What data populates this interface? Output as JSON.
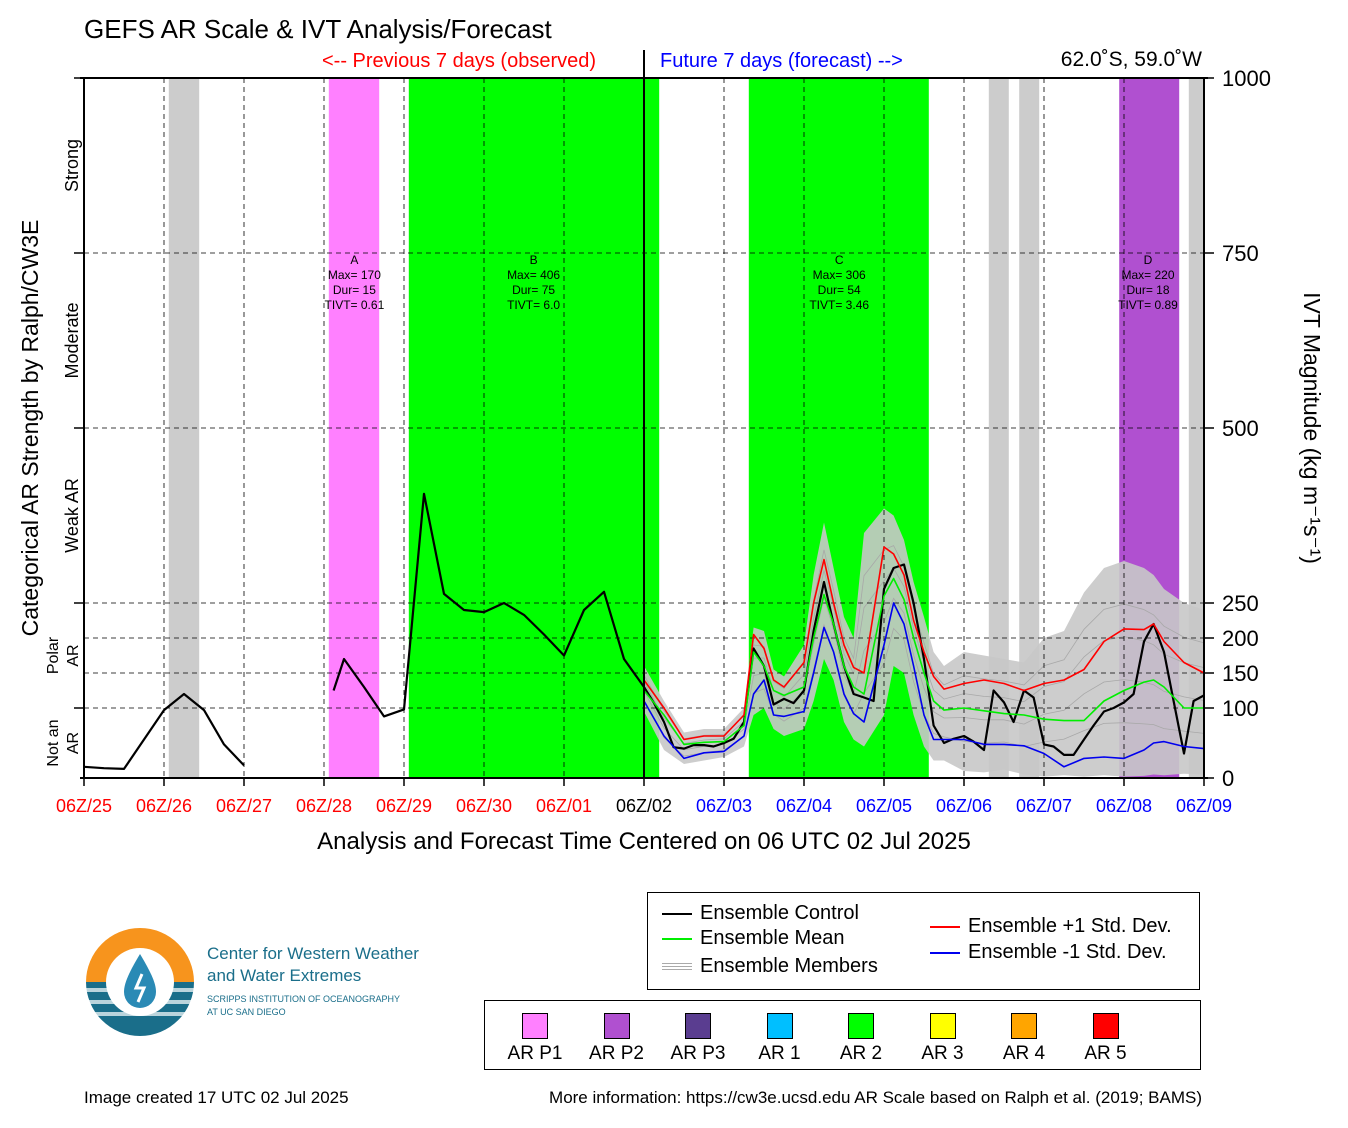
{
  "header": {
    "title": "GEFS AR Scale & IVT Analysis/Forecast",
    "previous_label": "<-- Previous 7 days (observed)",
    "future_label": "Future 7 days (forecast) -->",
    "location": "62.0˚S, 59.0˚W"
  },
  "chart_data": {
    "type": "line",
    "title": "GEFS AR Scale & IVT Analysis/Forecast",
    "xlabel": "Analysis and Forecast Time Centered on 06 UTC 02 Jul 2025",
    "ylabel_left": "Categorical AR Strength by Ralph/CW3E",
    "ylabel_right": "IVT Magnitude (kg m⁻¹s⁻¹)",
    "ylim": [
      0,
      1000
    ],
    "xlim": [
      0,
      14
    ],
    "x_ticks": [
      {
        "x": 0,
        "label": "06Z/25",
        "color": "#ff0000"
      },
      {
        "x": 1,
        "label": "06Z/26",
        "color": "#ff0000"
      },
      {
        "x": 2,
        "label": "06Z/27",
        "color": "#ff0000"
      },
      {
        "x": 3,
        "label": "06Z/28",
        "color": "#ff0000"
      },
      {
        "x": 4,
        "label": "06Z/29",
        "color": "#ff0000"
      },
      {
        "x": 5,
        "label": "06Z/30",
        "color": "#ff0000"
      },
      {
        "x": 6,
        "label": "06Z/01",
        "color": "#ff0000"
      },
      {
        "x": 7,
        "label": "06Z/02",
        "color": "#000000"
      },
      {
        "x": 8,
        "label": "06Z/03",
        "color": "#0000ff"
      },
      {
        "x": 9,
        "label": "06Z/04",
        "color": "#0000ff"
      },
      {
        "x": 10,
        "label": "06Z/05",
        "color": "#0000ff"
      },
      {
        "x": 11,
        "label": "06Z/06",
        "color": "#0000ff"
      },
      {
        "x": 12,
        "label": "06Z/07",
        "color": "#0000ff"
      },
      {
        "x": 13,
        "label": "06Z/08",
        "color": "#0000ff"
      },
      {
        "x": 14,
        "label": "06Z/09",
        "color": "#0000ff"
      }
    ],
    "y_ticks_right": [
      0,
      100,
      150,
      200,
      250,
      500,
      750,
      1000
    ],
    "hlines": [
      100,
      150,
      200,
      250,
      500,
      750
    ],
    "categories_left": [
      {
        "label": "Not an AR",
        "y0": 0,
        "y1": 100
      },
      {
        "label": "Polar AR",
        "y0": 100,
        "y1": 250
      },
      {
        "label": "Weak AR",
        "y0": 250,
        "y1": 500
      },
      {
        "label": "Moderate",
        "y0": 500,
        "y1": 750
      },
      {
        "label": "Strong",
        "y0": 750,
        "y1": 1000
      }
    ],
    "shaded_periods": [
      {
        "x0": 1.06,
        "x1": 1.44,
        "color": "#cccccc"
      },
      {
        "x0": 3.06,
        "x1": 3.69,
        "color": "#ff80ff"
      },
      {
        "x0": 4.06,
        "x1": 7.19,
        "color": "#00ff00"
      },
      {
        "x0": 8.31,
        "x1": 10.56,
        "color": "#00ff00"
      },
      {
        "x0": 11.31,
        "x1": 11.56,
        "color": "#cccccc"
      },
      {
        "x0": 11.69,
        "x1": 11.94,
        "color": "#cccccc"
      },
      {
        "x0": 13.94,
        "x1": 14.0,
        "color": "#cccccc"
      },
      {
        "x0": 12.94,
        "x1": 13.69,
        "color": "#b050d0"
      },
      {
        "x0": 13.81,
        "x1": 14.0,
        "color": "#cccccc"
      }
    ],
    "ar_events": [
      {
        "x": 3.38,
        "lines": [
          "A",
          "Max= 170",
          "Dur= 15",
          "TIVT= 0.61"
        ]
      },
      {
        "x": 5.62,
        "lines": [
          "B",
          "Max= 406",
          "Dur= 75",
          "TIVT= 6.0"
        ]
      },
      {
        "x": 9.44,
        "lines": [
          "C",
          "Max= 306",
          "Dur= 54",
          "TIVT= 3.46"
        ]
      },
      {
        "x": 13.3,
        "lines": [
          "D",
          "Max= 220",
          "Dur= 18",
          "TIVT= 0.89"
        ]
      }
    ],
    "series": [
      {
        "name": "Ensemble Control",
        "color": "#000000",
        "segments": [
          [
            [
              0,
              16
            ],
            [
              0.25,
              14
            ],
            [
              0.5,
              13
            ],
            [
              0.75,
              55
            ],
            [
              1.0,
              97
            ],
            [
              1.25,
              120
            ],
            [
              1.5,
              97
            ],
            [
              1.75,
              48
            ],
            [
              2.0,
              18
            ]
          ],
          [
            [
              3.12,
              125
            ],
            [
              3.25,
              170
            ],
            [
              3.5,
              130
            ],
            [
              3.75,
              88
            ],
            [
              4.0,
              98
            ],
            [
              4.25,
              406
            ],
            [
              4.5,
              263
            ],
            [
              4.75,
              240
            ],
            [
              5.0,
              237
            ],
            [
              5.25,
              250
            ],
            [
              5.5,
              233
            ],
            [
              5.75,
              205
            ],
            [
              6.0,
              175
            ],
            [
              6.25,
              240
            ],
            [
              6.5,
              266
            ],
            [
              6.75,
              170
            ],
            [
              7.0,
              130
            ],
            [
              7.12,
              108
            ],
            [
              7.25,
              80
            ],
            [
              7.37,
              44
            ],
            [
              7.5,
              42
            ],
            [
              7.62,
              47
            ],
            [
              7.75,
              47
            ],
            [
              7.87,
              45
            ],
            [
              8.0,
              50
            ],
            [
              8.12,
              56
            ],
            [
              8.25,
              80
            ],
            [
              8.37,
              185
            ],
            [
              8.5,
              160
            ],
            [
              8.62,
              105
            ],
            [
              8.75,
              113
            ],
            [
              8.87,
              107
            ],
            [
              9.0,
              125
            ],
            [
              9.12,
              210
            ],
            [
              9.25,
              280
            ],
            [
              9.37,
              220
            ],
            [
              9.5,
              160
            ],
            [
              9.62,
              120
            ],
            [
              9.75,
              115
            ],
            [
              9.87,
              110
            ],
            [
              10.0,
              270
            ],
            [
              10.12,
              300
            ],
            [
              10.25,
              305
            ],
            [
              10.37,
              250
            ],
            [
              10.5,
              170
            ],
            [
              10.62,
              75
            ],
            [
              10.75,
              50
            ],
            [
              10.87,
              56
            ],
            [
              11.0,
              60
            ],
            [
              11.12,
              52
            ],
            [
              11.25,
              40
            ],
            [
              11.37,
              125
            ],
            [
              11.5,
              108
            ],
            [
              11.62,
              80
            ],
            [
              11.75,
              125
            ],
            [
              11.87,
              115
            ],
            [
              12.0,
              48
            ],
            [
              12.12,
              45
            ],
            [
              12.25,
              33
            ],
            [
              12.37,
              33
            ],
            [
              12.5,
              55
            ],
            [
              12.62,
              75
            ],
            [
              12.75,
              95
            ],
            [
              12.87,
              100
            ],
            [
              13.0,
              108
            ],
            [
              13.12,
              120
            ],
            [
              13.25,
              195
            ],
            [
              13.37,
              220
            ],
            [
              13.5,
              180
            ],
            [
              13.62,
              110
            ],
            [
              13.75,
              35
            ],
            [
              13.87,
              110
            ],
            [
              14.0,
              118
            ]
          ]
        ]
      },
      {
        "name": "Ensemble Mean",
        "color": "#00ee00",
        "values": [
          [
            7.0,
            125
          ],
          [
            7.25,
            90
          ],
          [
            7.5,
            48
          ],
          [
            7.75,
            51
          ],
          [
            8.0,
            52
          ],
          [
            8.25,
            75
          ],
          [
            8.37,
            180
          ],
          [
            8.5,
            160
          ],
          [
            8.62,
            125
          ],
          [
            8.75,
            118
          ],
          [
            9.0,
            130
          ],
          [
            9.12,
            200
          ],
          [
            9.25,
            262
          ],
          [
            9.37,
            220
          ],
          [
            9.5,
            160
          ],
          [
            9.62,
            130
          ],
          [
            9.75,
            120
          ],
          [
            10.0,
            260
          ],
          [
            10.12,
            285
          ],
          [
            10.25,
            255
          ],
          [
            10.37,
            200
          ],
          [
            10.5,
            150
          ],
          [
            10.62,
            110
          ],
          [
            10.75,
            97
          ],
          [
            11.0,
            100
          ],
          [
            11.25,
            96
          ],
          [
            11.5,
            92
          ],
          [
            11.75,
            90
          ],
          [
            12.0,
            84
          ],
          [
            12.25,
            82
          ],
          [
            12.5,
            82
          ],
          [
            12.75,
            110
          ],
          [
            13.0,
            125
          ],
          [
            13.25,
            137
          ],
          [
            13.37,
            140
          ],
          [
            13.5,
            130
          ],
          [
            13.75,
            100
          ],
          [
            14.0,
            100
          ]
        ]
      },
      {
        "name": "Ensemble +1 Std. Dev.",
        "color": "#ff0000",
        "values": [
          [
            7.0,
            140
          ],
          [
            7.25,
            100
          ],
          [
            7.5,
            55
          ],
          [
            7.75,
            60
          ],
          [
            8.0,
            60
          ],
          [
            8.25,
            90
          ],
          [
            8.37,
            205
          ],
          [
            8.5,
            185
          ],
          [
            8.62,
            140
          ],
          [
            8.75,
            130
          ],
          [
            9.0,
            165
          ],
          [
            9.12,
            250
          ],
          [
            9.25,
            312
          ],
          [
            9.37,
            250
          ],
          [
            9.5,
            190
          ],
          [
            9.62,
            158
          ],
          [
            9.75,
            150
          ],
          [
            10.0,
            330
          ],
          [
            10.12,
            320
          ],
          [
            10.25,
            290
          ],
          [
            10.37,
            225
          ],
          [
            10.5,
            180
          ],
          [
            10.62,
            145
          ],
          [
            10.75,
            127
          ],
          [
            11.0,
            135
          ],
          [
            11.25,
            140
          ],
          [
            11.5,
            135
          ],
          [
            11.75,
            125
          ],
          [
            12.0,
            135
          ],
          [
            12.25,
            140
          ],
          [
            12.5,
            155
          ],
          [
            12.75,
            195
          ],
          [
            13.0,
            213
          ],
          [
            13.25,
            212
          ],
          [
            13.37,
            220
          ],
          [
            13.5,
            195
          ],
          [
            13.75,
            165
          ],
          [
            14.0,
            150
          ]
        ]
      },
      {
        "name": "Ensemble -1 Std. Dev.",
        "color": "#0000ee",
        "values": [
          [
            7.0,
            110
          ],
          [
            7.25,
            60
          ],
          [
            7.5,
            28
          ],
          [
            7.75,
            36
          ],
          [
            8.0,
            38
          ],
          [
            8.25,
            60
          ],
          [
            8.37,
            120
          ],
          [
            8.5,
            140
          ],
          [
            8.62,
            90
          ],
          [
            8.75,
            88
          ],
          [
            9.0,
            95
          ],
          [
            9.12,
            150
          ],
          [
            9.25,
            215
          ],
          [
            9.37,
            180
          ],
          [
            9.5,
            120
          ],
          [
            9.62,
            92
          ],
          [
            9.75,
            80
          ],
          [
            10.0,
            190
          ],
          [
            10.12,
            250
          ],
          [
            10.25,
            220
          ],
          [
            10.37,
            160
          ],
          [
            10.5,
            90
          ],
          [
            10.62,
            55
          ],
          [
            10.75,
            55
          ],
          [
            11.0,
            55
          ],
          [
            11.25,
            48
          ],
          [
            11.5,
            48
          ],
          [
            11.75,
            46
          ],
          [
            12.0,
            35
          ],
          [
            12.25,
            16
          ],
          [
            12.5,
            28
          ],
          [
            12.75,
            30
          ],
          [
            13.0,
            28
          ],
          [
            13.25,
            40
          ],
          [
            13.37,
            50
          ],
          [
            13.5,
            52
          ],
          [
            13.75,
            45
          ],
          [
            14.0,
            42
          ]
        ]
      }
    ],
    "ensemble_spread": {
      "name": "Ensemble Members",
      "color": "#aaaaaa",
      "x": [
        7.0,
        7.25,
        7.5,
        7.75,
        8.0,
        8.25,
        8.37,
        8.5,
        8.62,
        8.75,
        9.0,
        9.12,
        9.25,
        9.37,
        9.5,
        9.62,
        9.75,
        10.0,
        10.12,
        10.25,
        10.37,
        10.5,
        10.62,
        10.75,
        11.0,
        11.25,
        11.5,
        11.75,
        12.0,
        12.25,
        12.5,
        12.75,
        13.0,
        13.25,
        13.37,
        13.5,
        13.75,
        14.0
      ],
      "upper": [
        160,
        110,
        65,
        70,
        70,
        100,
        215,
        210,
        155,
        145,
        190,
        290,
        365,
        300,
        230,
        200,
        350,
        385,
        375,
        340,
        280,
        230,
        180,
        160,
        180,
        175,
        170,
        165,
        200,
        210,
        265,
        300,
        310,
        300,
        290,
        270,
        250,
        240
      ],
      "lower": [
        95,
        40,
        20,
        25,
        30,
        45,
        90,
        100,
        70,
        60,
        70,
        110,
        170,
        140,
        80,
        55,
        45,
        90,
        160,
        150,
        90,
        45,
        25,
        25,
        10,
        8,
        12,
        5,
        2,
        4,
        2,
        4,
        2,
        3,
        5,
        4,
        6,
        5
      ]
    }
  },
  "legend": {
    "control": "Ensemble Control",
    "mean": "Ensemble Mean",
    "members": "Ensemble Members",
    "plus_std": "Ensemble +1 Std. Dev.",
    "minus_std": "Ensemble -1 Std. Dev."
  },
  "ar_categories": [
    {
      "label": "AR P1",
      "color": "#ff80ff"
    },
    {
      "label": "AR P2",
      "color": "#b050d0"
    },
    {
      "label": "AR P3",
      "color": "#5a3d90"
    },
    {
      "label": "AR 1",
      "color": "#00bfff"
    },
    {
      "label": "AR 2",
      "color": "#00ff00"
    },
    {
      "label": "AR 3",
      "color": "#ffff00"
    },
    {
      "label": "AR 4",
      "color": "#ffa500"
    },
    {
      "label": "AR 5",
      "color": "#ff0000"
    }
  ],
  "logo": {
    "line1": "Center for Western Weather",
    "line2": "and Water Extremes",
    "line3": "SCRIPPS INSTITUTION OF OCEANOGRAPHY",
    "line4": "AT UC SAN DIEGO"
  },
  "footer": {
    "created": "Image created 17 UTC 02 Jul 2025",
    "more_info": "More information: https://cw3e.ucsd.edu AR Scale based on Ralph et al. (2019; BAMS)"
  }
}
